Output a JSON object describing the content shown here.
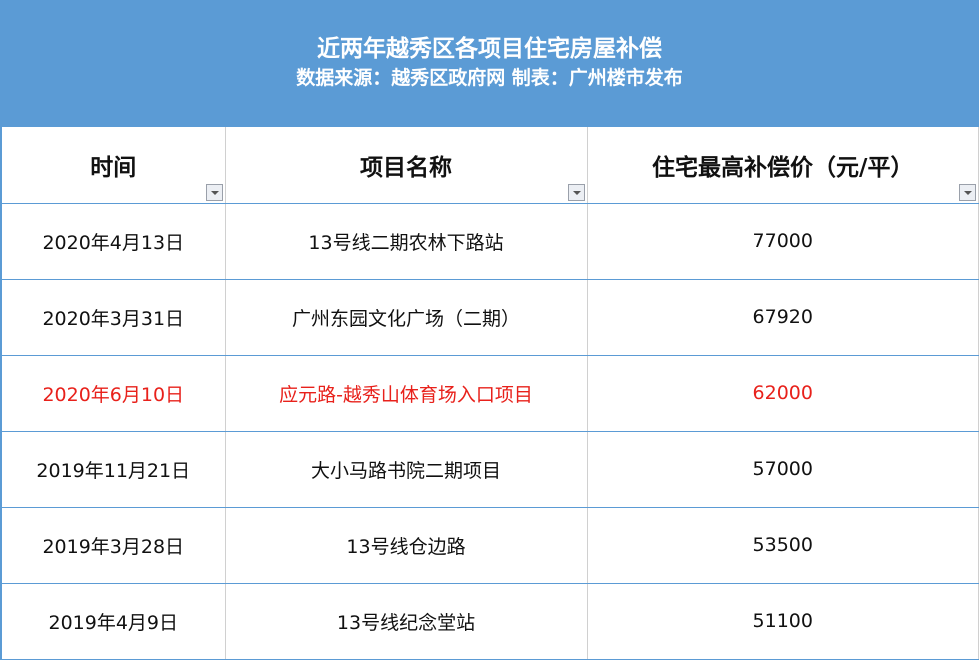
{
  "title": "近两年越秀区各项目住宅房屋补偿",
  "subtitle": "数据来源：越秀区政府网 制表：广州楼市发布",
  "headers": [
    "时间",
    "项目名称",
    "住宅最高补偿价（元/平）"
  ],
  "highlight_color": "#e8211b",
  "rows": [
    {
      "date": "2020年4月13日",
      "project": "13号线二期农林下路站",
      "price": "77000",
      "highlight": false
    },
    {
      "date": "2020年3月31日",
      "project": "广州东园文化广场（二期）",
      "price": "67920",
      "highlight": false
    },
    {
      "date": "2020年6月10日",
      "project": "应元路-越秀山体育场入口项目",
      "price": "62000",
      "highlight": true
    },
    {
      "date": "2019年11月21日",
      "project": "大小马路书院二期项目",
      "price": "57000",
      "highlight": false
    },
    {
      "date": "2019年3月28日",
      "project": "13号线仓边路",
      "price": "53500",
      "highlight": false
    },
    {
      "date": "2019年4月9日",
      "project": "13号线纪念堂站",
      "price": "51100",
      "highlight": false
    }
  ]
}
